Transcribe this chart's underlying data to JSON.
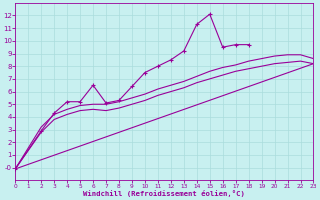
{
  "xlabel": "Windchill (Refroidissement éolien,°C)",
  "bg_color": "#c8f0f0",
  "line_color": "#990099",
  "grid_color": "#aadddd",
  "xlim": [
    0,
    23
  ],
  "ylim": [
    -1,
    13
  ],
  "xticks": [
    0,
    1,
    2,
    3,
    4,
    5,
    6,
    7,
    8,
    9,
    10,
    11,
    12,
    13,
    14,
    15,
    16,
    17,
    18,
    19,
    20,
    21,
    22,
    23
  ],
  "yticks": [
    0,
    1,
    2,
    3,
    4,
    5,
    6,
    7,
    8,
    9,
    10,
    11,
    12
  ],
  "series": [
    {
      "x": [
        0,
        2,
        3,
        4,
        5,
        6,
        7,
        8,
        9,
        10,
        11,
        12,
        13,
        14,
        15,
        16,
        17,
        18
      ],
      "y": [
        -0.1,
        2.9,
        4.3,
        5.2,
        5.2,
        6.5,
        5.1,
        5.3,
        6.4,
        7.5,
        8.0,
        8.5,
        9.2,
        11.3,
        12.1,
        9.5,
        9.7,
        9.7
      ],
      "marker": "+"
    },
    {
      "x": [
        0,
        2,
        3,
        4,
        5,
        6,
        7,
        8,
        9,
        10,
        11,
        12,
        13,
        14,
        15,
        16,
        17,
        18,
        19,
        20,
        21,
        22,
        23
      ],
      "y": [
        -0.1,
        3.2,
        4.2,
        4.6,
        4.9,
        5.0,
        5.0,
        5.2,
        5.5,
        5.8,
        6.2,
        6.5,
        6.8,
        7.2,
        7.6,
        7.9,
        8.1,
        8.4,
        8.6,
        8.8,
        8.9,
        8.9,
        8.6
      ],
      "marker": null
    },
    {
      "x": [
        0,
        2,
        3,
        4,
        5,
        6,
        7,
        8,
        9,
        10,
        11,
        12,
        13,
        14,
        15,
        16,
        17,
        18,
        19,
        20,
        21,
        22,
        23
      ],
      "y": [
        -0.1,
        2.8,
        3.8,
        4.2,
        4.5,
        4.6,
        4.5,
        4.7,
        5.0,
        5.3,
        5.7,
        6.0,
        6.3,
        6.7,
        7.0,
        7.3,
        7.6,
        7.8,
        8.0,
        8.2,
        8.3,
        8.4,
        8.2
      ],
      "marker": null
    },
    {
      "x": [
        0,
        23
      ],
      "y": [
        -0.1,
        8.2
      ],
      "marker": null
    }
  ]
}
